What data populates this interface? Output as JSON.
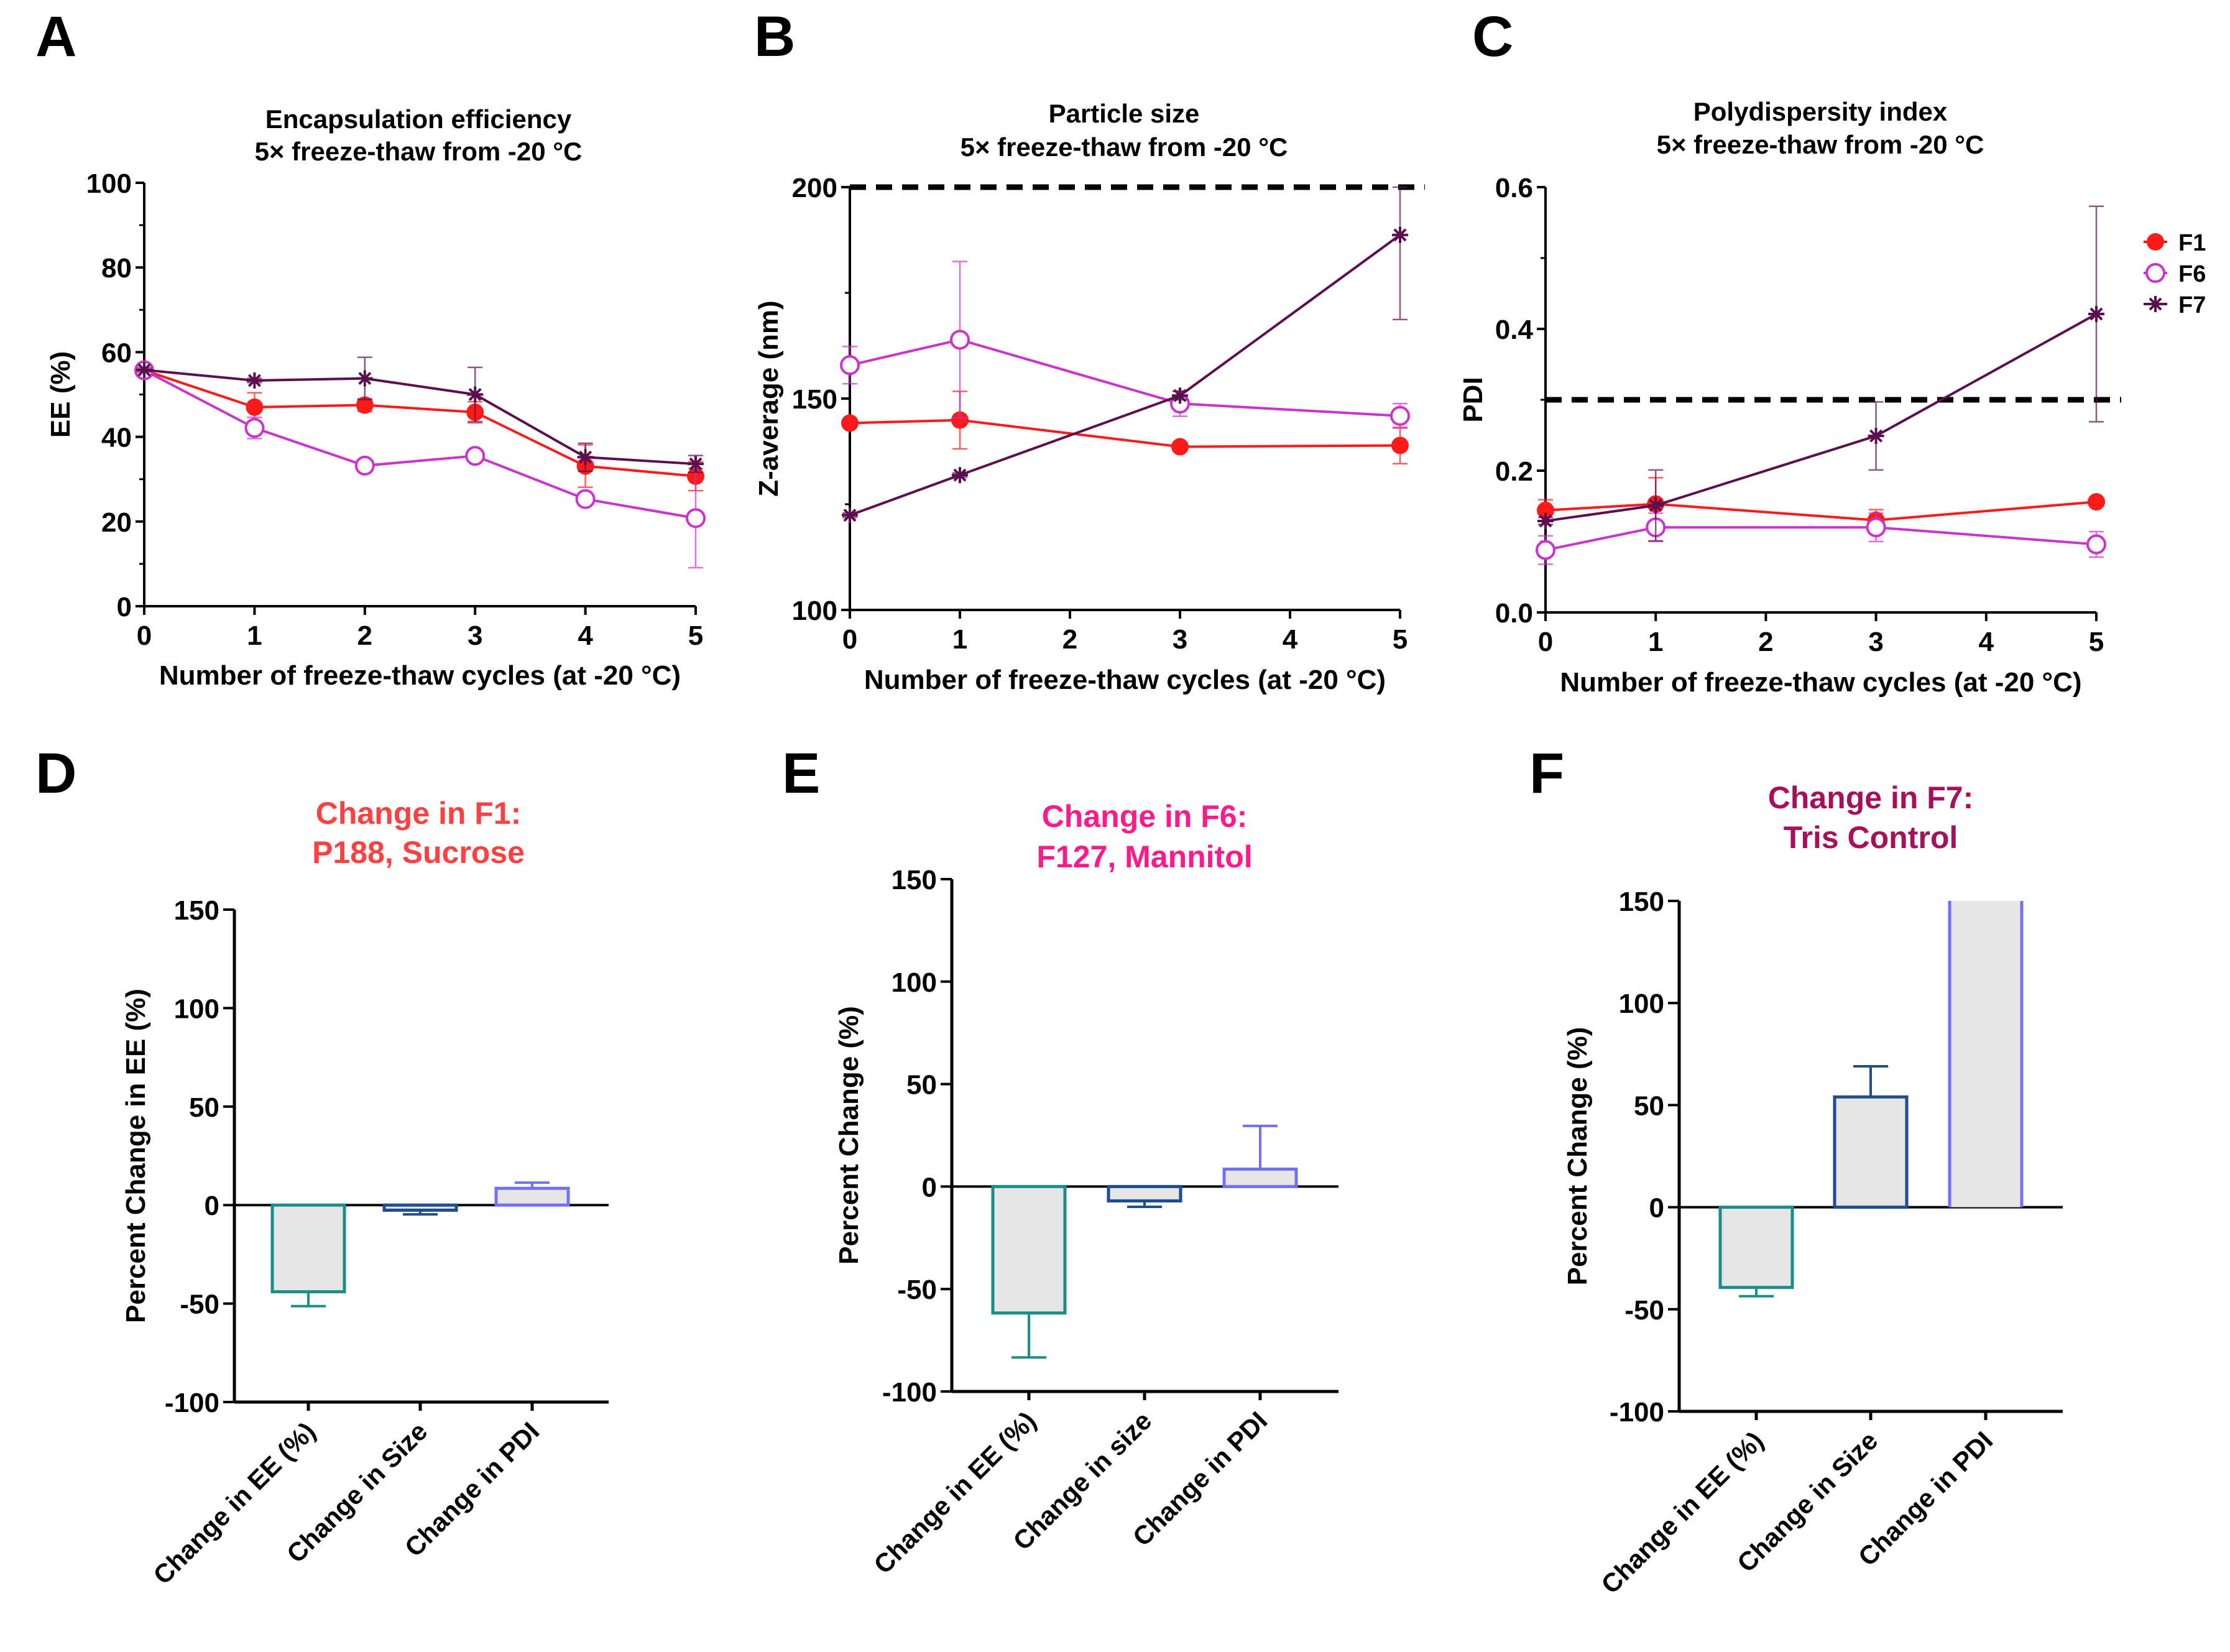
{
  "chart_data": [
    {
      "panel_label": "A",
      "type": "line",
      "title": [
        "Encapsulation efficiency",
        "5× freeze-thaw from -20 °C"
      ],
      "xlabel": "Number of freeze-thaw cycles (at -20 °C)",
      "ylabel": "EE (%)",
      "xlim": [
        0,
        5
      ],
      "ylim": [
        0,
        100
      ],
      "xticks": [
        "0",
        "1",
        "2",
        "3",
        "4",
        "5"
      ],
      "yticks": [
        "0",
        "20",
        "40",
        "60",
        "80",
        "100"
      ],
      "series": [
        {
          "name": "F1",
          "color": "#ff1a1a",
          "marker": "filled-circle",
          "x": [
            0,
            1,
            2,
            3,
            4,
            5
          ],
          "y": [
            55.7,
            47.0,
            47.5,
            45.8,
            33.1,
            30.7
          ],
          "err": [
            0.8,
            3.4,
            1.5,
            2.5,
            5.0,
            3.4
          ]
        },
        {
          "name": "F6",
          "color": "#cc33cc",
          "marker": "open-circle",
          "x": [
            0,
            1,
            2,
            3,
            4,
            5
          ],
          "y": [
            55.7,
            42.1,
            33.2,
            35.5,
            25.3,
            20.8
          ],
          "err": [
            0.5,
            2.5,
            0.5,
            0.5,
            0.5,
            11.7
          ]
        },
        {
          "name": "F7",
          "color": "#5c0f4e",
          "marker": "asterisk",
          "x": [
            0,
            1,
            2,
            3,
            4,
            5
          ],
          "y": [
            55.8,
            53.3,
            53.8,
            50.0,
            35.2,
            33.6
          ],
          "err": [
            0.5,
            0.5,
            5.0,
            6.4,
            3.3,
            2.0
          ]
        }
      ]
    },
    {
      "panel_label": "B",
      "type": "line",
      "title": [
        "Particle size",
        "5× freeze-thaw from -20 °C"
      ],
      "xlabel": "Number of freeze-thaw cycles (at -20 °C)",
      "ylabel": "Z-average  (nm)",
      "xlim": [
        0,
        5
      ],
      "ylim": [
        100,
        200
      ],
      "xticks": [
        "0",
        "1",
        "2",
        "3",
        "4",
        "5"
      ],
      "yticks": [
        "100",
        "150",
        "200"
      ],
      "reference_line": 200,
      "series": [
        {
          "name": "F1",
          "color": "#ff1a1a",
          "marker": "filled-circle",
          "x": [
            0,
            1,
            3,
            5
          ],
          "y": [
            144.2,
            144.9,
            138.6,
            138.9
          ],
          "err": [
            0.5,
            6.8,
            1.0,
            4.3
          ]
        },
        {
          "name": "F6",
          "color": "#cc33cc",
          "marker": "open-circle",
          "x": [
            0,
            1,
            3,
            5
          ],
          "y": [
            157.9,
            163.9,
            148.8,
            145.9
          ],
          "err": [
            4.4,
            18.5,
            3.0,
            2.9
          ]
        },
        {
          "name": "F7",
          "color": "#5c0f4e",
          "marker": "asterisk",
          "x": [
            0,
            1,
            3,
            5
          ],
          "y": [
            122.4,
            131.9,
            150.7,
            188.7
          ],
          "err": [
            0.5,
            0.5,
            1.0,
            20.0
          ]
        }
      ]
    },
    {
      "panel_label": "C",
      "type": "line",
      "title": [
        "Polydispersity index",
        "5× freeze-thaw from -20 °C"
      ],
      "xlabel": "Number of freeze-thaw cycles (at -20 °C)",
      "ylabel": "PDI",
      "xlim": [
        0,
        5
      ],
      "ylim": [
        0,
        0.6
      ],
      "xticks": [
        "0",
        "1",
        "2",
        "3",
        "4",
        "5"
      ],
      "yticks": [
        "0.0",
        "0.2",
        "0.4",
        "0.6"
      ],
      "reference_line": 0.3,
      "legend": "right",
      "series": [
        {
          "name": "F1",
          "color": "#ff1a1a",
          "marker": "filled-circle",
          "x": [
            0,
            1,
            3,
            5
          ],
          "y": [
            0.144,
            0.153,
            0.13,
            0.156
          ],
          "err": [
            0.015,
            0.037,
            0.015,
            0.005
          ]
        },
        {
          "name": "F6",
          "color": "#cc33cc",
          "marker": "open-circle",
          "x": [
            0,
            1,
            3,
            5
          ],
          "y": [
            0.088,
            0.12,
            0.12,
            0.096
          ],
          "err": [
            0.02,
            0.02,
            0.02,
            0.018
          ]
        },
        {
          "name": "F7",
          "color": "#5c0f4e",
          "marker": "asterisk",
          "x": [
            0,
            1,
            3,
            5
          ],
          "y": [
            0.129,
            0.151,
            0.249,
            0.421
          ],
          "err": [
            0.005,
            0.05,
            0.048,
            0.152
          ]
        }
      ]
    },
    {
      "panel_label": "D",
      "type": "bar",
      "title": [
        "Change in F1:",
        "P188, Sucrose"
      ],
      "title_color": "#ff4040",
      "ylabel": "Percent Change in EE (%)",
      "ylim": [
        -100,
        150
      ],
      "yticks": [
        "-100",
        "-50",
        "0",
        "50",
        "100",
        "150"
      ],
      "categories": [
        "Change in EE (%)",
        "Change in Size",
        "Change in PDI"
      ],
      "values": [
        -44,
        -2.6,
        8.5
      ],
      "err": [
        7.3,
        2.1,
        2.9
      ],
      "bar_edge_colors": [
        "#1a8f8a",
        "#1f4e8f",
        "#7070ff"
      ],
      "bar_fill": "#e6e6e6"
    },
    {
      "panel_label": "E",
      "type": "bar",
      "title": [
        "Change in F6:",
        "F127, Mannitol"
      ],
      "title_color": "#ff1a8c",
      "ylabel": "Percent Change (%)",
      "ylim": [
        -100,
        150
      ],
      "yticks": [
        "-100",
        "-50",
        "0",
        "50",
        "100",
        "150"
      ],
      "categories": [
        "Change in EE (%)",
        "Change in size",
        "Change in PDI"
      ],
      "values": [
        -61.7,
        -7.0,
        8.5
      ],
      "err": [
        21.7,
        2.9,
        21.1
      ],
      "bar_edge_colors": [
        "#1a8f8a",
        "#1f4e8f",
        "#7070ff"
      ],
      "bar_fill": "#e6e6e6"
    },
    {
      "panel_label": "F",
      "type": "bar",
      "title": [
        "Change in F7:",
        "Tris Control"
      ],
      "title_color": "#a6105a",
      "ylabel": "Percent Change (%)",
      "ylim": [
        -100,
        150
      ],
      "yticks": [
        "-100",
        "-50",
        "0",
        "50",
        "100",
        "150"
      ],
      "categories": [
        "Change in EE (%)",
        "Change in Size",
        "Change in PDI"
      ],
      "values": [
        -39.3,
        54,
        150
      ],
      "err": [
        4.3,
        15,
        0
      ],
      "clipped": [
        false,
        false,
        true
      ],
      "bar_edge_colors": [
        "#1a8f8a",
        "#1f4e8f",
        "#7070ff"
      ],
      "bar_fill": "#e6e6e6"
    }
  ]
}
